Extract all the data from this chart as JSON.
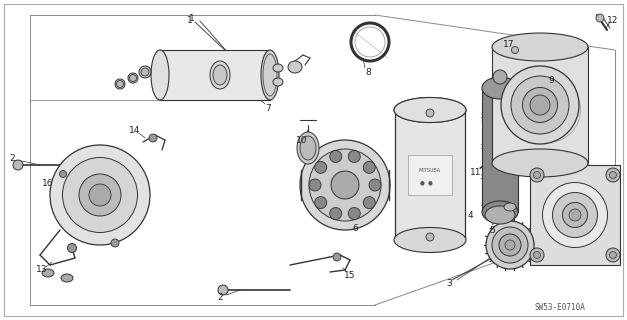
{
  "bg_color": "#ffffff",
  "line_color": "#333333",
  "dark_color": "#555555",
  "light_gray": "#cccccc",
  "mid_gray": "#999999",
  "diagram_code": "SW53-E0710A",
  "figsize": [
    6.27,
    3.2
  ],
  "dpi": 100
}
